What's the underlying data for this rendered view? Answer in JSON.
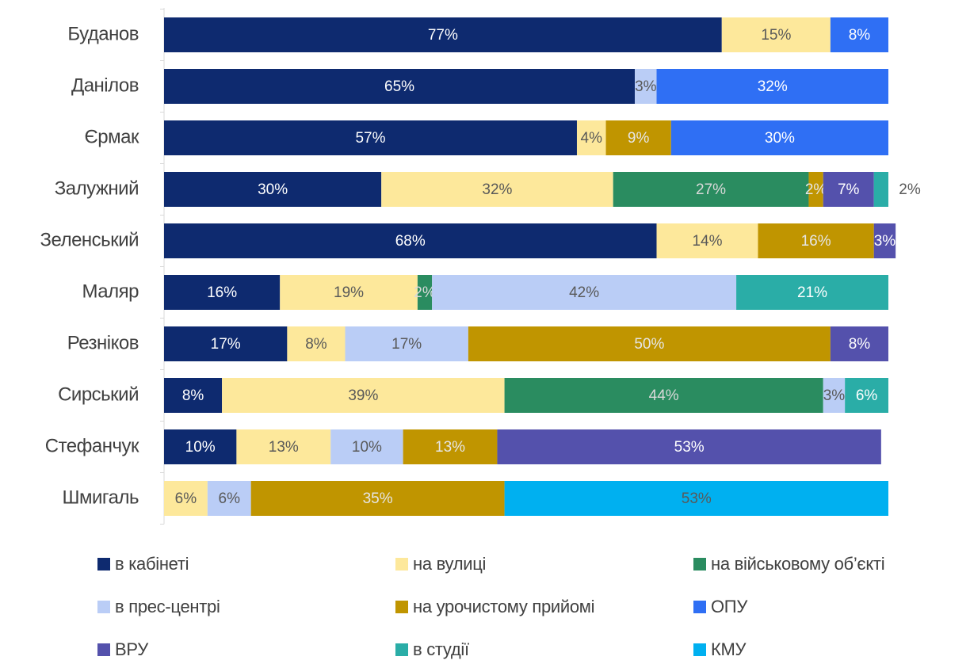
{
  "chart_data": {
    "type": "stacked_barh",
    "categories": [
      "Буданов",
      "Данілов",
      "Єрмак",
      "Залужний",
      "Зеленський",
      "Маляр",
      "Резніков",
      "Сирський",
      "Стефанчук",
      "Шмигаль"
    ],
    "xlim": [
      0,
      100
    ],
    "series": [
      {
        "name": "в кабінеті",
        "color": "#0e2a6f",
        "label_color": "#ffffff",
        "values": [
          77,
          65,
          57,
          30,
          68,
          16,
          17,
          8,
          10,
          null
        ],
        "value_labels": [
          "77%",
          "65%",
          "57%",
          "30%",
          "68%",
          "16%",
          "17%",
          "8%",
          "10%",
          null
        ]
      },
      {
        "name": "на вулиці",
        "color": "#fde89b",
        "label_color": "#595959",
        "values": [
          15,
          null,
          4,
          32,
          14,
          19,
          8,
          39,
          13,
          6
        ],
        "value_labels": [
          "15%",
          null,
          "4%",
          "32%",
          "14%",
          "19%",
          "8%",
          "39%",
          "13%",
          "6%"
        ]
      },
      {
        "name": "на військовому об’єкті",
        "color": "#2a8c60",
        "label_color": "#d9d9d9",
        "values": [
          null,
          null,
          null,
          27,
          null,
          2,
          null,
          44,
          null,
          null
        ],
        "value_labels": [
          null,
          null,
          null,
          "27%",
          null,
          "2%",
          null,
          "44%",
          null,
          null
        ]
      },
      {
        "name": "в прес-центрі",
        "color": "#bacdf6",
        "label_color": "#595959",
        "values": [
          null,
          3,
          null,
          null,
          null,
          42,
          17,
          3,
          10,
          6
        ],
        "value_labels": [
          null,
          "3%",
          null,
          null,
          null,
          "42%",
          "17%",
          "3%",
          "10%",
          "6%"
        ]
      },
      {
        "name": "на урочистому прийомі",
        "color": "#c09500",
        "label_color": "#e6e6e6",
        "values": [
          null,
          null,
          9,
          2,
          16,
          null,
          50,
          null,
          13,
          35
        ],
        "value_labels": [
          null,
          null,
          "9%",
          "2%",
          "16%",
          null,
          "50%",
          null,
          "13%",
          "35%"
        ]
      },
      {
        "name": "ОПУ",
        "color": "#2f6ff4",
        "label_color": "#ffffff",
        "values": [
          8,
          32,
          30,
          null,
          null,
          null,
          null,
          null,
          null,
          null
        ],
        "value_labels": [
          "8%",
          "32%",
          "30%",
          null,
          null,
          null,
          null,
          null,
          null,
          null
        ]
      },
      {
        "name": "ВРУ",
        "color": "#5451ac",
        "label_color": "#ffffff",
        "values": [
          null,
          null,
          null,
          7,
          3,
          null,
          8,
          null,
          53,
          null
        ],
        "value_labels": [
          null,
          null,
          null,
          "7%",
          "3%",
          null,
          "8%",
          null,
          "53%",
          null
        ]
      },
      {
        "name": "в студії",
        "color": "#2aada7",
        "label_color": "#ffffff",
        "values": [
          null,
          null,
          null,
          2,
          null,
          21,
          null,
          6,
          null,
          null
        ],
        "value_labels": [
          null,
          null,
          null,
          "2%",
          null,
          "21%",
          null,
          "6%",
          null,
          null
        ]
      },
      {
        "name": "КМУ",
        "color": "#00b0f0",
        "label_color": "#595959",
        "values": [
          null,
          null,
          null,
          null,
          null,
          null,
          null,
          null,
          null,
          53
        ],
        "value_labels": [
          null,
          null,
          null,
          null,
          null,
          null,
          null,
          null,
          null,
          "53%"
        ]
      }
    ],
    "legend": "bottom"
  }
}
